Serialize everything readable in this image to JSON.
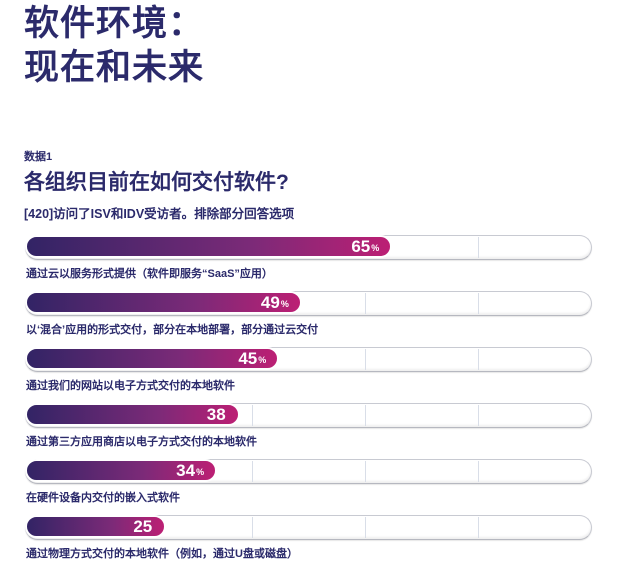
{
  "page": {
    "title_line1": "软件环境：",
    "title_line2": "现在和未来",
    "section_tag": "数据1",
    "question": "各组织目前在如何交付软件?",
    "subtitle": "[420]访问了ISV和IDV受访者。排除部分回答选项"
  },
  "colors": {
    "heading": "#2b2a6b",
    "bar_gradient_start": "#322465",
    "bar_gradient_mid": "#7c2a78",
    "bar_gradient_end": "#bc1f74",
    "track_border": "#c8cad2",
    "gridline": "#d9dee8",
    "value_text": "#ffffff"
  },
  "chart_data": {
    "type": "bar",
    "orientation": "horizontal",
    "title": "各组织目前在如何交付软件?",
    "subtitle": "[420]访问了ISV和IDV受访者。排除部分回答选项",
    "xlim": [
      0,
      100
    ],
    "gridlines_pct": [
      20,
      40,
      60,
      80
    ],
    "rows": [
      {
        "value": 65,
        "value_label": "65",
        "unit": "%",
        "label": "通过云以服务形式提供（软件即服务“SaaS”应用）"
      },
      {
        "value": 49,
        "value_label": "49",
        "unit": "%",
        "label": "以‘混合’应用的形式交付，部分在本地部署，部分通过云交付"
      },
      {
        "value": 45,
        "value_label": "45",
        "unit": "%",
        "label": "通过我们的网站以电子方式交付的本地软件"
      },
      {
        "value": 38,
        "value_label": "38",
        "unit": "",
        "label": "通过第三方应用商店以电子方式交付的本地软件"
      },
      {
        "value": 34,
        "value_label": "34",
        "unit": "%",
        "label": "在硬件设备内交付的嵌入式软件"
      },
      {
        "value": 25,
        "value_label": "25",
        "unit": "",
        "label": "通过物理方式交付的本地软件（例如，通过U盘或磁盘）"
      }
    ]
  }
}
